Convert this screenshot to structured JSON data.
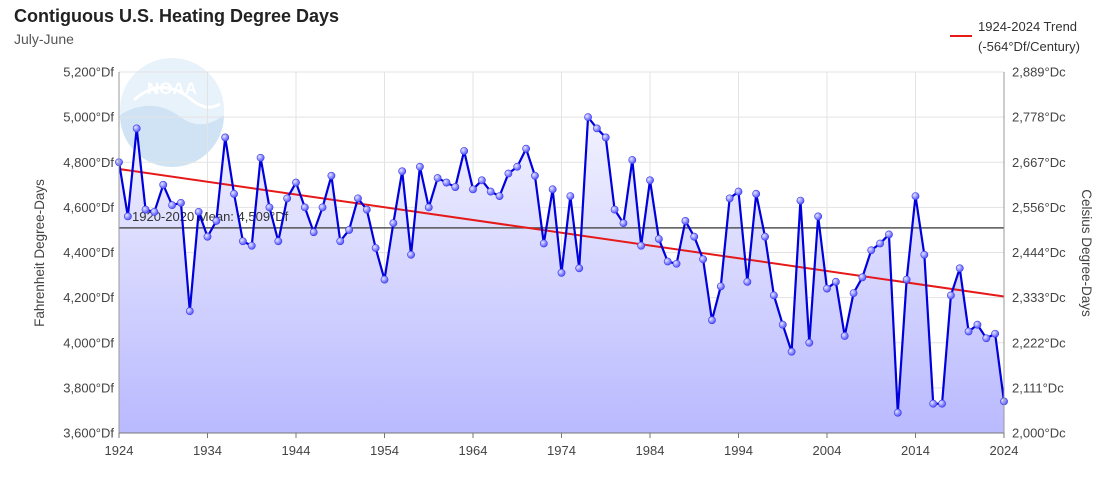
{
  "header": {
    "title": "Contiguous U.S. Heating Degree Days",
    "subtitle": "July-June"
  },
  "legend": {
    "trend_line1": "1924-2024 Trend",
    "trend_line2": "(-564°Df/Century)"
  },
  "logo": {
    "text": "NOAA"
  },
  "colors": {
    "series": "#0000dd",
    "marker": "#5a5aff",
    "trend": "#e61919",
    "mean": "#555555",
    "area_top": "#f2f2ff",
    "area_bottom": "#b9b9ff"
  },
  "chart_data": {
    "type": "line",
    "title": "Contiguous U.S. Heating Degree Days",
    "subtitle": "July-June",
    "xlabel": "",
    "ylabel": "Fahrenheit Degree-Days",
    "ylabel_right": "Celsius Degree-Days",
    "xlim": [
      1924,
      2024
    ],
    "ylim": [
      3600,
      5200
    ],
    "ylim_right": [
      2000,
      2889
    ],
    "x_ticks": [
      "1924",
      "1934",
      "1944",
      "1954",
      "1964",
      "1974",
      "1984",
      "1994",
      "2004",
      "2014",
      "2024"
    ],
    "y_ticks": [
      "5,200°Df",
      "5,000°Df",
      "4,800°Df",
      "4,600°Df",
      "4,400°Df",
      "4,200°Df",
      "4,000°Df",
      "3,800°Df",
      "3,600°Df"
    ],
    "y_ticks_right": [
      "2,889°Dc",
      "2,778°Dc",
      "2,667°Dc",
      "2,556°Dc",
      "2,444°Dc",
      "2,333°Dc",
      "2,222°Dc",
      "2,111°Dc",
      "2,000°Dc"
    ],
    "grid": true,
    "legend_position": "top-right",
    "mean": {
      "label": "1920-2020 Mean: 4,509°Df",
      "value": 4509
    },
    "trend": {
      "label": "1924-2024 Trend (-564°Df/Century)",
      "start": [
        1924,
        4770
      ],
      "end": [
        2024,
        4205
      ]
    },
    "series": [
      {
        "name": "",
        "x": [
          1924,
          1925,
          1926,
          1927,
          1928,
          1929,
          1930,
          1931,
          1932,
          1933,
          1934,
          1935,
          1936,
          1937,
          1938,
          1939,
          1940,
          1941,
          1942,
          1943,
          1944,
          1945,
          1946,
          1947,
          1948,
          1949,
          1950,
          1951,
          1952,
          1953,
          1954,
          1955,
          1956,
          1957,
          1958,
          1959,
          1960,
          1961,
          1962,
          1963,
          1964,
          1965,
          1966,
          1967,
          1968,
          1969,
          1970,
          1971,
          1972,
          1973,
          1974,
          1975,
          1976,
          1977,
          1978,
          1979,
          1980,
          1981,
          1982,
          1983,
          1984,
          1985,
          1986,
          1987,
          1988,
          1989,
          1990,
          1991,
          1992,
          1993,
          1994,
          1995,
          1996,
          1997,
          1998,
          1999,
          2000,
          2001,
          2002,
          2003,
          2004,
          2005,
          2006,
          2007,
          2008,
          2009,
          2010,
          2011,
          2012,
          2013,
          2014,
          2015,
          2016,
          2017,
          2018,
          2019,
          2020,
          2021,
          2022,
          2023,
          2024
        ],
        "values": [
          4800,
          4560,
          4950,
          4590,
          4580,
          4700,
          4610,
          4620,
          4140,
          4580,
          4470,
          4540,
          4910,
          4660,
          4450,
          4430,
          4820,
          4600,
          4450,
          4640,
          4710,
          4600,
          4490,
          4600,
          4740,
          4450,
          4500,
          4640,
          4590,
          4420,
          4280,
          4530,
          4760,
          4390,
          4780,
          4600,
          4730,
          4710,
          4690,
          4850,
          4680,
          4720,
          4670,
          4650,
          4750,
          4780,
          4860,
          4740,
          4440,
          4680,
          4310,
          4650,
          4330,
          5000,
          4950,
          4910,
          4590,
          4530,
          4810,
          4430,
          4720,
          4460,
          4360,
          4350,
          4540,
          4470,
          4370,
          4100,
          4250,
          4640,
          4670,
          4270,
          4660,
          4470,
          4210,
          4080,
          3960,
          4630,
          4000,
          4560,
          4240,
          4270,
          4030,
          4220,
          4290,
          4410,
          4440,
          4480,
          3690,
          4280,
          4650,
          4390,
          3730,
          3730,
          4210,
          4330,
          4050,
          4080,
          4020,
          4040,
          3740
        ]
      }
    ]
  }
}
